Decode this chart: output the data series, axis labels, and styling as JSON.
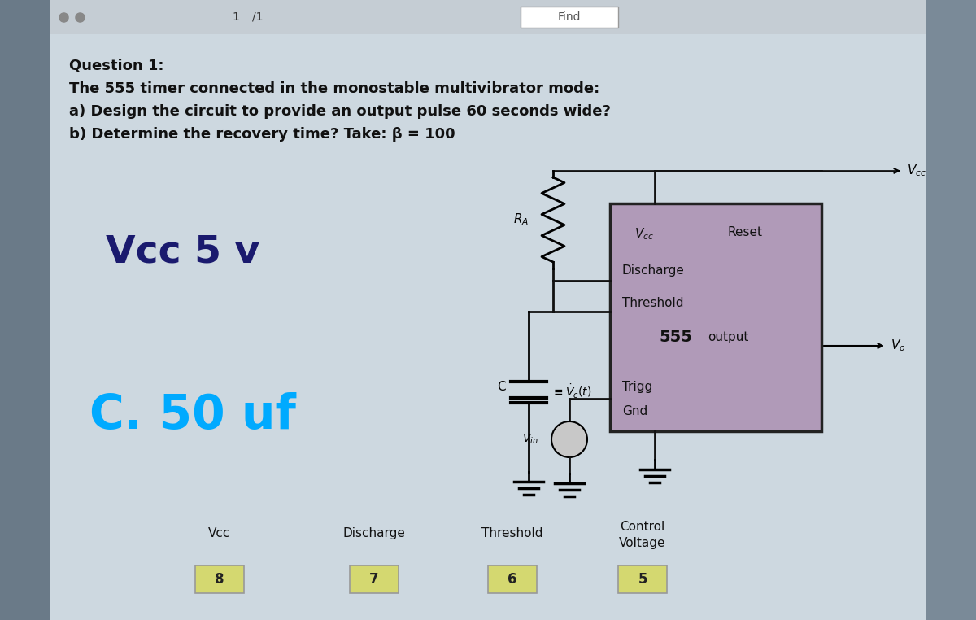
{
  "bg_color": "#8fa8bc",
  "toolbar_bg": "#c5cdd4",
  "page_bg": "#cdd8e0",
  "page_border": "#a0aab0",
  "question_title": "Question 1:",
  "line1": "The 555 timer connected in the monostable multivibrator mode:",
  "line2": "a) Design the circuit to provide an output pulse 60 seconds wide?",
  "line3": "b) Determine the recovery time? Take: β = 100",
  "vcc_label": "Vcc 5 v",
  "c_label": "C. 50 uf",
  "vcc_label_color": "#1a1a6e",
  "c_label_color": "#00aaff",
  "circuit_box_color": "#b09ab8",
  "circuit_box_border": "#222222",
  "text_color": "#111111",
  "pin_box_color": "#d4d870",
  "pin_numbers": [
    "8",
    "7",
    "6",
    "5"
  ],
  "pin_labels": [
    "Vcc",
    "Discharge",
    "Threshold",
    "Control\nVoltage"
  ],
  "wire_color": "#111111",
  "left_bar_color": "#6a7a88",
  "right_bar_color": "#7a8a98"
}
